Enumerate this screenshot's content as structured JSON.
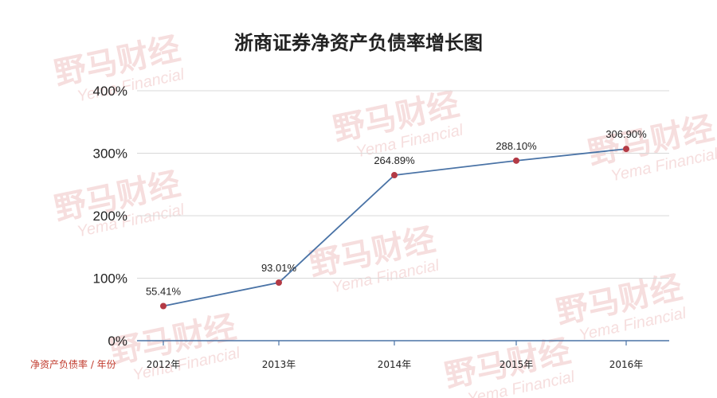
{
  "colors": {
    "line": "#4a73a6",
    "marker": "#b33a45",
    "grid": "#d8d8d8",
    "axis": "#4a73a6",
    "caption": "#c0392b",
    "watermark": "#f4d4d4"
  },
  "watermark": {
    "brand": "野马财经",
    "sub": "Yema Financial"
  },
  "chart_data": {
    "type": "line",
    "title": "浙商证券净资产负债率增长图",
    "xlabel": "净资产负债率 / 年份",
    "ylabel": "",
    "categories": [
      "2012年",
      "2013年",
      "2014年",
      "2015年",
      "2016年"
    ],
    "series": [
      {
        "values": [
          55.41,
          93.01,
          264.89,
          288.1,
          306.9
        ],
        "labels": [
          "55.41%",
          "93.01%",
          "264.89%",
          "288.10%",
          "306.90%"
        ]
      }
    ],
    "ylim": [
      0,
      400
    ],
    "yticks": [
      0,
      100,
      200,
      300,
      400
    ],
    "ytick_labels": [
      "0%",
      "100%",
      "200%",
      "300%",
      "400%"
    ],
    "grid": true,
    "legend": "none"
  }
}
